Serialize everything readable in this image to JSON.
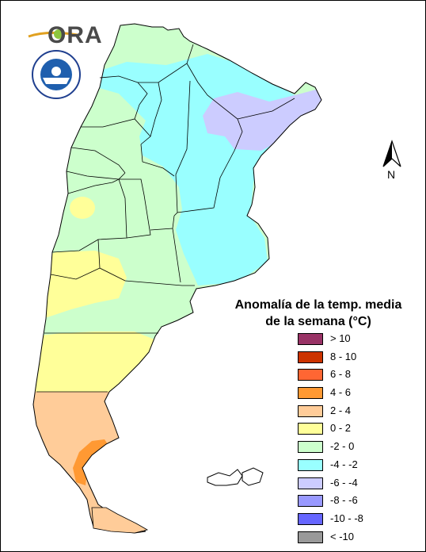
{
  "logo": {
    "name": "ORA",
    "seal": "SMN Argentina seal"
  },
  "north_label": "N",
  "legend": {
    "title_line1": "Anomalía de la temp. media",
    "title_line2": "de la semana (°C)",
    "items": [
      {
        "label": "> 10",
        "color": "#993366"
      },
      {
        "label": "8 - 10",
        "color": "#cc3300"
      },
      {
        "label": "6 - 8",
        "color": "#ff6633"
      },
      {
        "label": "4 - 6",
        "color": "#ff9933"
      },
      {
        "label": "2 - 4",
        "color": "#ffcc99"
      },
      {
        "label": "0 - 2",
        "color": "#ffff99"
      },
      {
        "label": "-2 - 0",
        "color": "#ccffcc"
      },
      {
        "label": "-4 - -2",
        "color": "#99ffff"
      },
      {
        "label": "-6 - -4",
        "color": "#ccccff"
      },
      {
        "label": "-8 - -6",
        "color": "#9999ff"
      },
      {
        "label": "-10 - -8",
        "color": "#6666ff"
      },
      {
        "label": "< -10",
        "color": "#999999"
      }
    ]
  },
  "colors": {
    "green": "#ccffcc",
    "cyan": "#99ffff",
    "lavender": "#ccccff",
    "yellow": "#ffff99",
    "peach": "#ffcc99",
    "orange": "#ff9933",
    "border": "#000000"
  }
}
